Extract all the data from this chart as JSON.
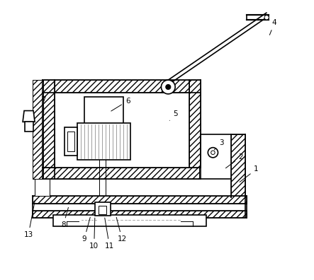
{
  "fig_width": 4.43,
  "fig_height": 3.96,
  "dpi": 100,
  "bg_color": "#ffffff",
  "lc": "#000000",
  "lw_main": 1.2,
  "lw_thin": 0.7,
  "lw_hatch": 0.5,
  "hatch_density": "////",
  "labels_map": {
    "1": [
      0.855,
      0.395,
      0.79,
      0.345
    ],
    "2": [
      0.8,
      0.44,
      0.74,
      0.395
    ],
    "3": [
      0.73,
      0.49,
      0.7,
      0.46
    ],
    "4": [
      0.92,
      0.92,
      0.9,
      0.87
    ],
    "5": [
      0.565,
      0.595,
      0.545,
      0.57
    ],
    "6": [
      0.395,
      0.64,
      0.33,
      0.6
    ],
    "7": [
      0.095,
      0.645,
      0.095,
      0.59
    ],
    "8": [
      0.165,
      0.195,
      0.185,
      0.265
    ],
    "9": [
      0.24,
      0.145,
      0.263,
      0.23
    ],
    "10": [
      0.275,
      0.12,
      0.278,
      0.228
    ],
    "11": [
      0.33,
      0.12,
      0.312,
      0.228
    ],
    "12": [
      0.375,
      0.145,
      0.353,
      0.23
    ],
    "13": [
      0.04,
      0.16,
      0.065,
      0.29
    ]
  }
}
